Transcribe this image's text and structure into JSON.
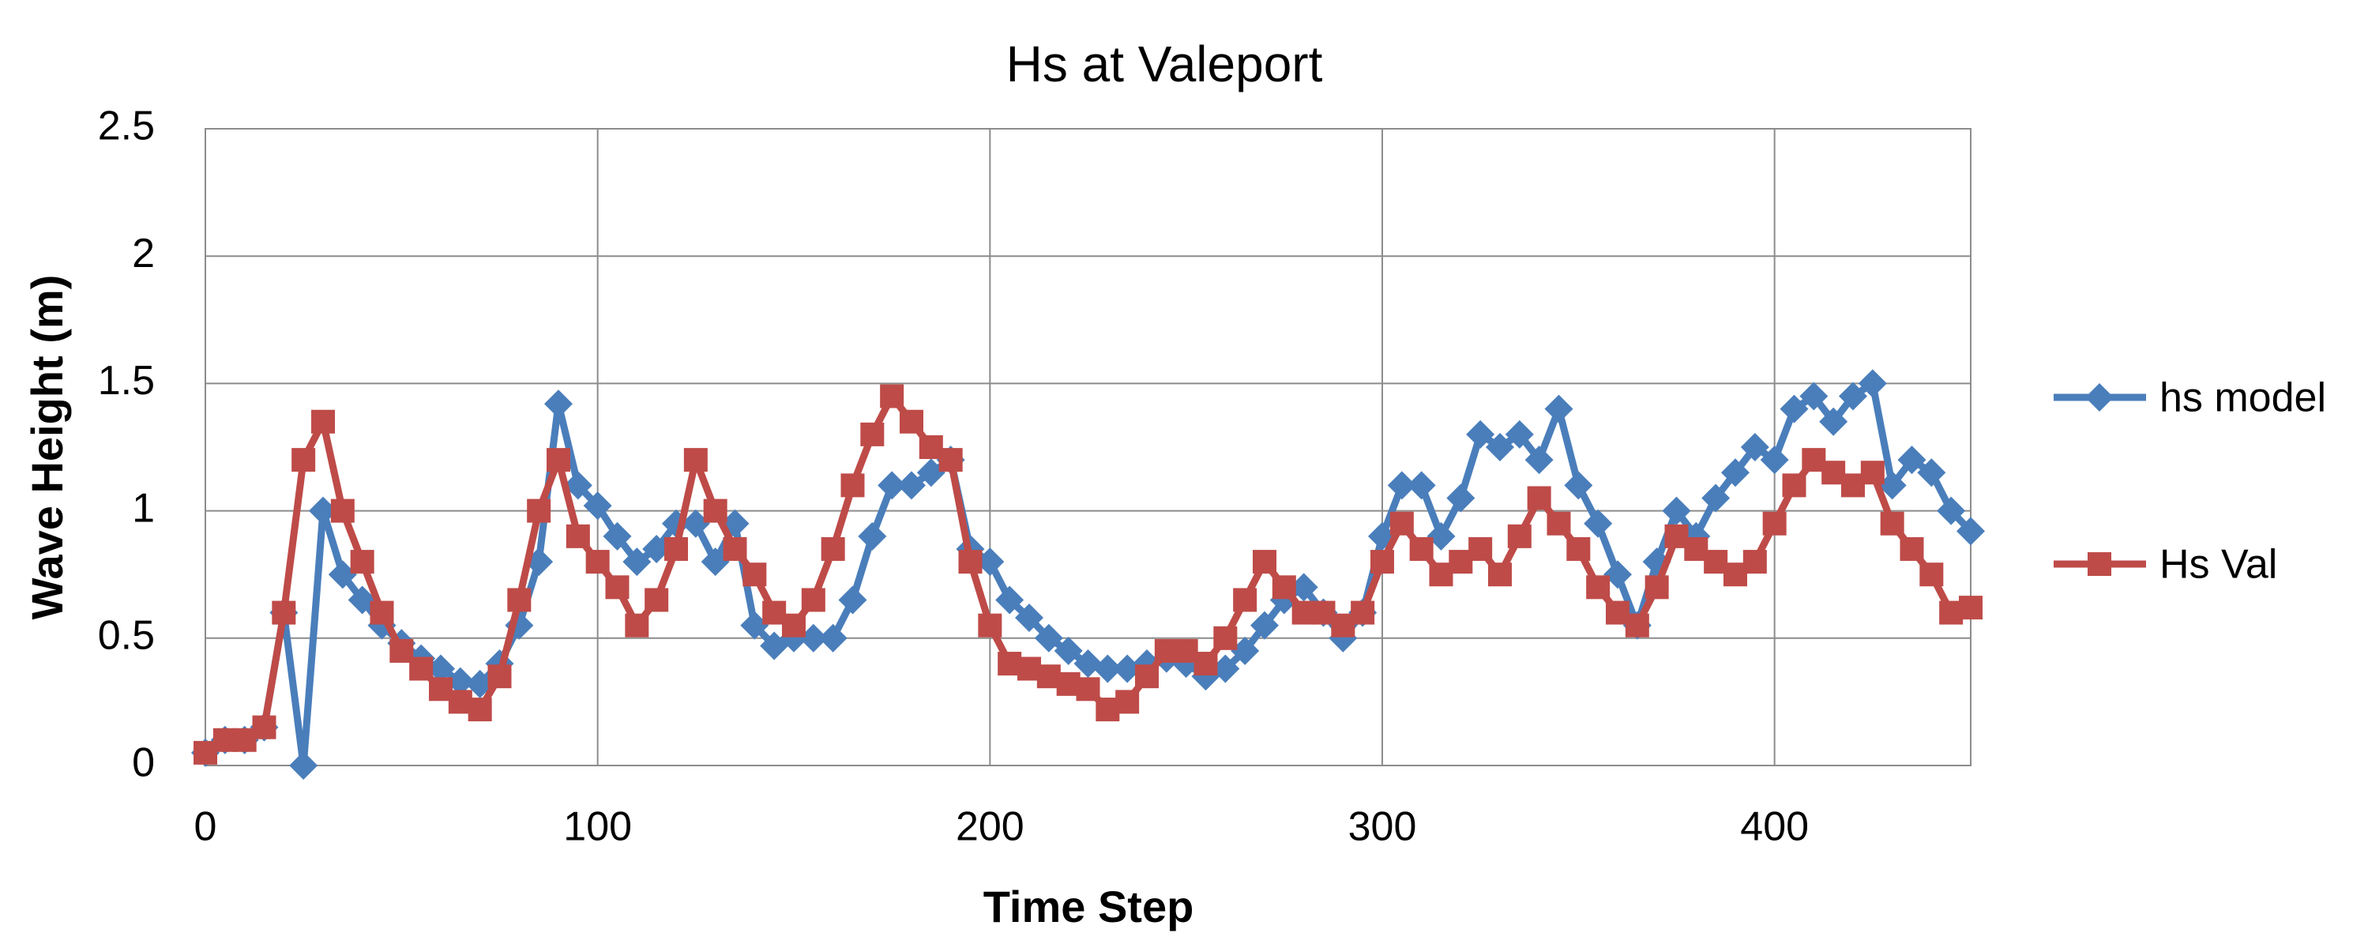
{
  "chart_data": {
    "type": "line",
    "title": "Hs at Valeport",
    "x_label": "Time Step",
    "y_label": "Wave Height (m)",
    "x": [
      0,
      5,
      10,
      15,
      20,
      25,
      30,
      35,
      40,
      45,
      50,
      55,
      60,
      65,
      70,
      75,
      80,
      85,
      90,
      95,
      100,
      105,
      110,
      115,
      120,
      125,
      130,
      135,
      140,
      145,
      150,
      155,
      160,
      165,
      170,
      175,
      180,
      185,
      190,
      195,
      200,
      205,
      210,
      215,
      220,
      225,
      230,
      235,
      240,
      245,
      250,
      255,
      260,
      265,
      270,
      275,
      280,
      285,
      290,
      295,
      300,
      305,
      310,
      315,
      320,
      325,
      330,
      335,
      340,
      345,
      350,
      355,
      360,
      365,
      370,
      375,
      380,
      385,
      390,
      395,
      400,
      405,
      410,
      415,
      420,
      425,
      430,
      435,
      440,
      445,
      450
    ],
    "series": [
      {
        "name": "hs model",
        "color": "#4a7ebb",
        "marker": "diamond",
        "values": [
          0.05,
          0.1,
          0.1,
          0.15,
          0.6,
          0,
          1.0,
          0.75,
          0.65,
          0.55,
          0.48,
          0.42,
          0.38,
          0.33,
          0.32,
          0.4,
          0.55,
          0.8,
          1.42,
          1.1,
          1.02,
          0.9,
          0.8,
          0.85,
          0.95,
          0.95,
          0.8,
          0.95,
          0.55,
          0.47,
          0.5,
          0.5,
          0.5,
          0.65,
          0.9,
          1.1,
          1.1,
          1.15,
          1.2,
          0.85,
          0.8,
          0.65,
          0.58,
          0.5,
          0.45,
          0.4,
          0.38,
          0.38,
          0.4,
          0.42,
          0.4,
          0.35,
          0.38,
          0.45,
          0.55,
          0.65,
          0.7,
          0.6,
          0.5,
          0.6,
          0.9,
          1.1,
          1.1,
          0.9,
          1.05,
          1.3,
          1.25,
          1.3,
          1.2,
          1.4,
          1.1,
          0.95,
          0.75,
          0.55,
          0.8,
          1.0,
          0.9,
          1.05,
          1.15,
          1.25,
          1.2,
          1.4,
          1.45,
          1.35,
          1.45,
          1.5,
          1.1,
          1.2,
          1.15,
          1.0,
          0.92
        ]
      },
      {
        "name": "Hs Val",
        "color": "#be4b48",
        "marker": "square",
        "values": [
          0.05,
          0.1,
          0.1,
          0.15,
          0.6,
          1.2,
          1.35,
          1.0,
          0.8,
          0.6,
          0.45,
          0.38,
          0.3,
          0.25,
          0.22,
          0.35,
          0.65,
          1.0,
          1.2,
          0.9,
          0.8,
          0.7,
          0.55,
          0.65,
          0.85,
          1.2,
          1.0,
          0.85,
          0.75,
          0.6,
          0.55,
          0.65,
          0.85,
          1.1,
          1.3,
          1.45,
          1.35,
          1.25,
          1.2,
          0.8,
          0.55,
          0.4,
          0.38,
          0.35,
          0.32,
          0.3,
          0.22,
          0.25,
          0.35,
          0.45,
          0.45,
          0.4,
          0.5,
          0.65,
          0.8,
          0.7,
          0.6,
          0.6,
          0.55,
          0.6,
          0.8,
          0.95,
          0.85,
          0.75,
          0.8,
          0.85,
          0.75,
          0.9,
          1.05,
          0.95,
          0.85,
          0.7,
          0.6,
          0.55,
          0.7,
          0.9,
          0.85,
          0.8,
          0.75,
          0.8,
          0.95,
          1.1,
          1.2,
          1.15,
          1.1,
          1.15,
          0.95,
          0.85,
          0.75,
          0.6,
          0.62
        ]
      }
    ],
    "xlim": [
      0,
      450
    ],
    "xticks": [
      0,
      100,
      200,
      300,
      400
    ],
    "ylim": [
      0,
      2.5
    ],
    "yticks": [
      0,
      0.5,
      1,
      1.5,
      2,
      2.5
    ],
    "grid": true,
    "legend": "right"
  }
}
